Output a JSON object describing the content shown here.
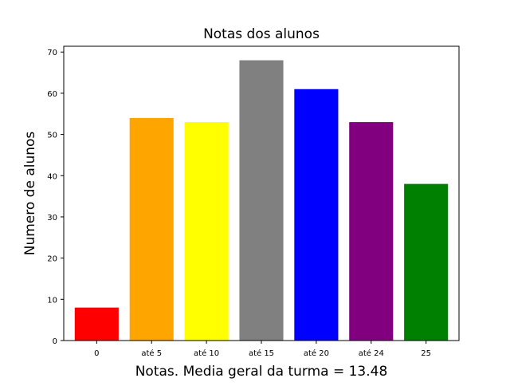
{
  "chart_data": {
    "type": "bar",
    "title": "Notas dos alunos",
    "xlabel": "Notas. Media geral da turma = 13.48",
    "ylabel": "Numero de alunos",
    "categories": [
      "0",
      "até 5",
      "até 10",
      "até 15",
      "até 20",
      "até 24",
      "25"
    ],
    "values": [
      8,
      54,
      53,
      68,
      61,
      53,
      38
    ],
    "colors": [
      "#ff0000",
      "#ffa500",
      "#ffff00",
      "#808080",
      "#0000ff",
      "#800080",
      "#008000"
    ],
    "ylim": [
      0,
      71.4
    ],
    "yticks": [
      0,
      10,
      20,
      30,
      40,
      50,
      60,
      70
    ],
    "grid": false,
    "legend": false
  }
}
